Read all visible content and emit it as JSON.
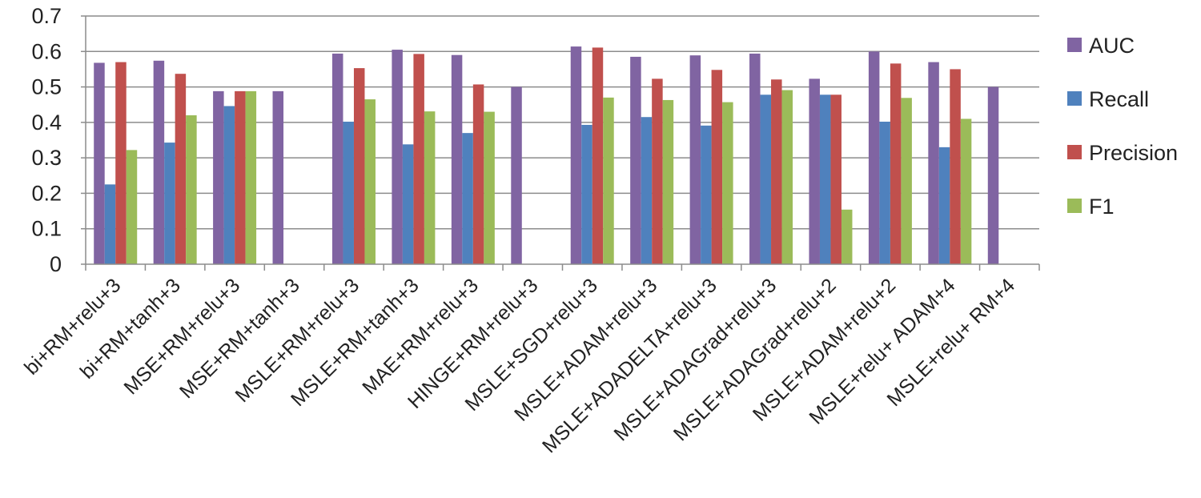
{
  "chart_data": {
    "type": "bar",
    "title": "",
    "xlabel": "",
    "ylabel": "",
    "ylim": [
      0,
      0.7
    ],
    "yticks": [
      "0",
      "0.1",
      "0.2",
      "0.3",
      "0.4",
      "0.5",
      "0.6",
      "0.7"
    ],
    "grid": true,
    "legend_position": "right",
    "categories": [
      "bi+RM+relu+3",
      "bi+RM+tanh+3",
      "MSE+RM+relu+3",
      "MSE+RM+tanh+3",
      "MSLE+RM+relu+3",
      "MSLE+RM+tanh+3",
      "MAE+RM+relu+3",
      "HINGE+RM+relu+3",
      "MSLE+SGD+relu+3",
      "MSLE+ADAM+relu+3",
      "MSLE+ADADELTA+relu+3",
      "MSLE+ADAGrad+relu+3",
      "MSLE+ADAGrad+relu+2",
      "MSLE+ADAM+relu+2",
      "MSLE+relu+ ADAM+4",
      "MSLE+relu+ RM+4"
    ],
    "series": [
      {
        "name": "AUC",
        "color": "#8064a2",
        "values": [
          0.568,
          0.574,
          0.488,
          0.488,
          0.594,
          0.605,
          0.59,
          0.5,
          0.614,
          0.585,
          0.589,
          0.594,
          0.523,
          0.6,
          0.57,
          0.5
        ]
      },
      {
        "name": "Recall",
        "color": "#4f81bd",
        "values": [
          0.225,
          0.343,
          0.446,
          0,
          0.402,
          0.338,
          0.37,
          0,
          0.393,
          0.415,
          0.391,
          0.478,
          0.478,
          0.402,
          0.33,
          0
        ]
      },
      {
        "name": "Precision",
        "color": "#c0504d",
        "values": [
          0.57,
          0.537,
          0.488,
          0,
          0.553,
          0.593,
          0.507,
          0,
          0.611,
          0.523,
          0.548,
          0.521,
          0.478,
          0.566,
          0.55,
          0
        ]
      },
      {
        "name": "F1",
        "color": "#9bbb59",
        "values": [
          0.322,
          0.42,
          0.488,
          0,
          0.465,
          0.431,
          0.43,
          0,
          0.47,
          0.463,
          0.457,
          0.491,
          0.154,
          0.469,
          0.41,
          0
        ]
      }
    ]
  }
}
